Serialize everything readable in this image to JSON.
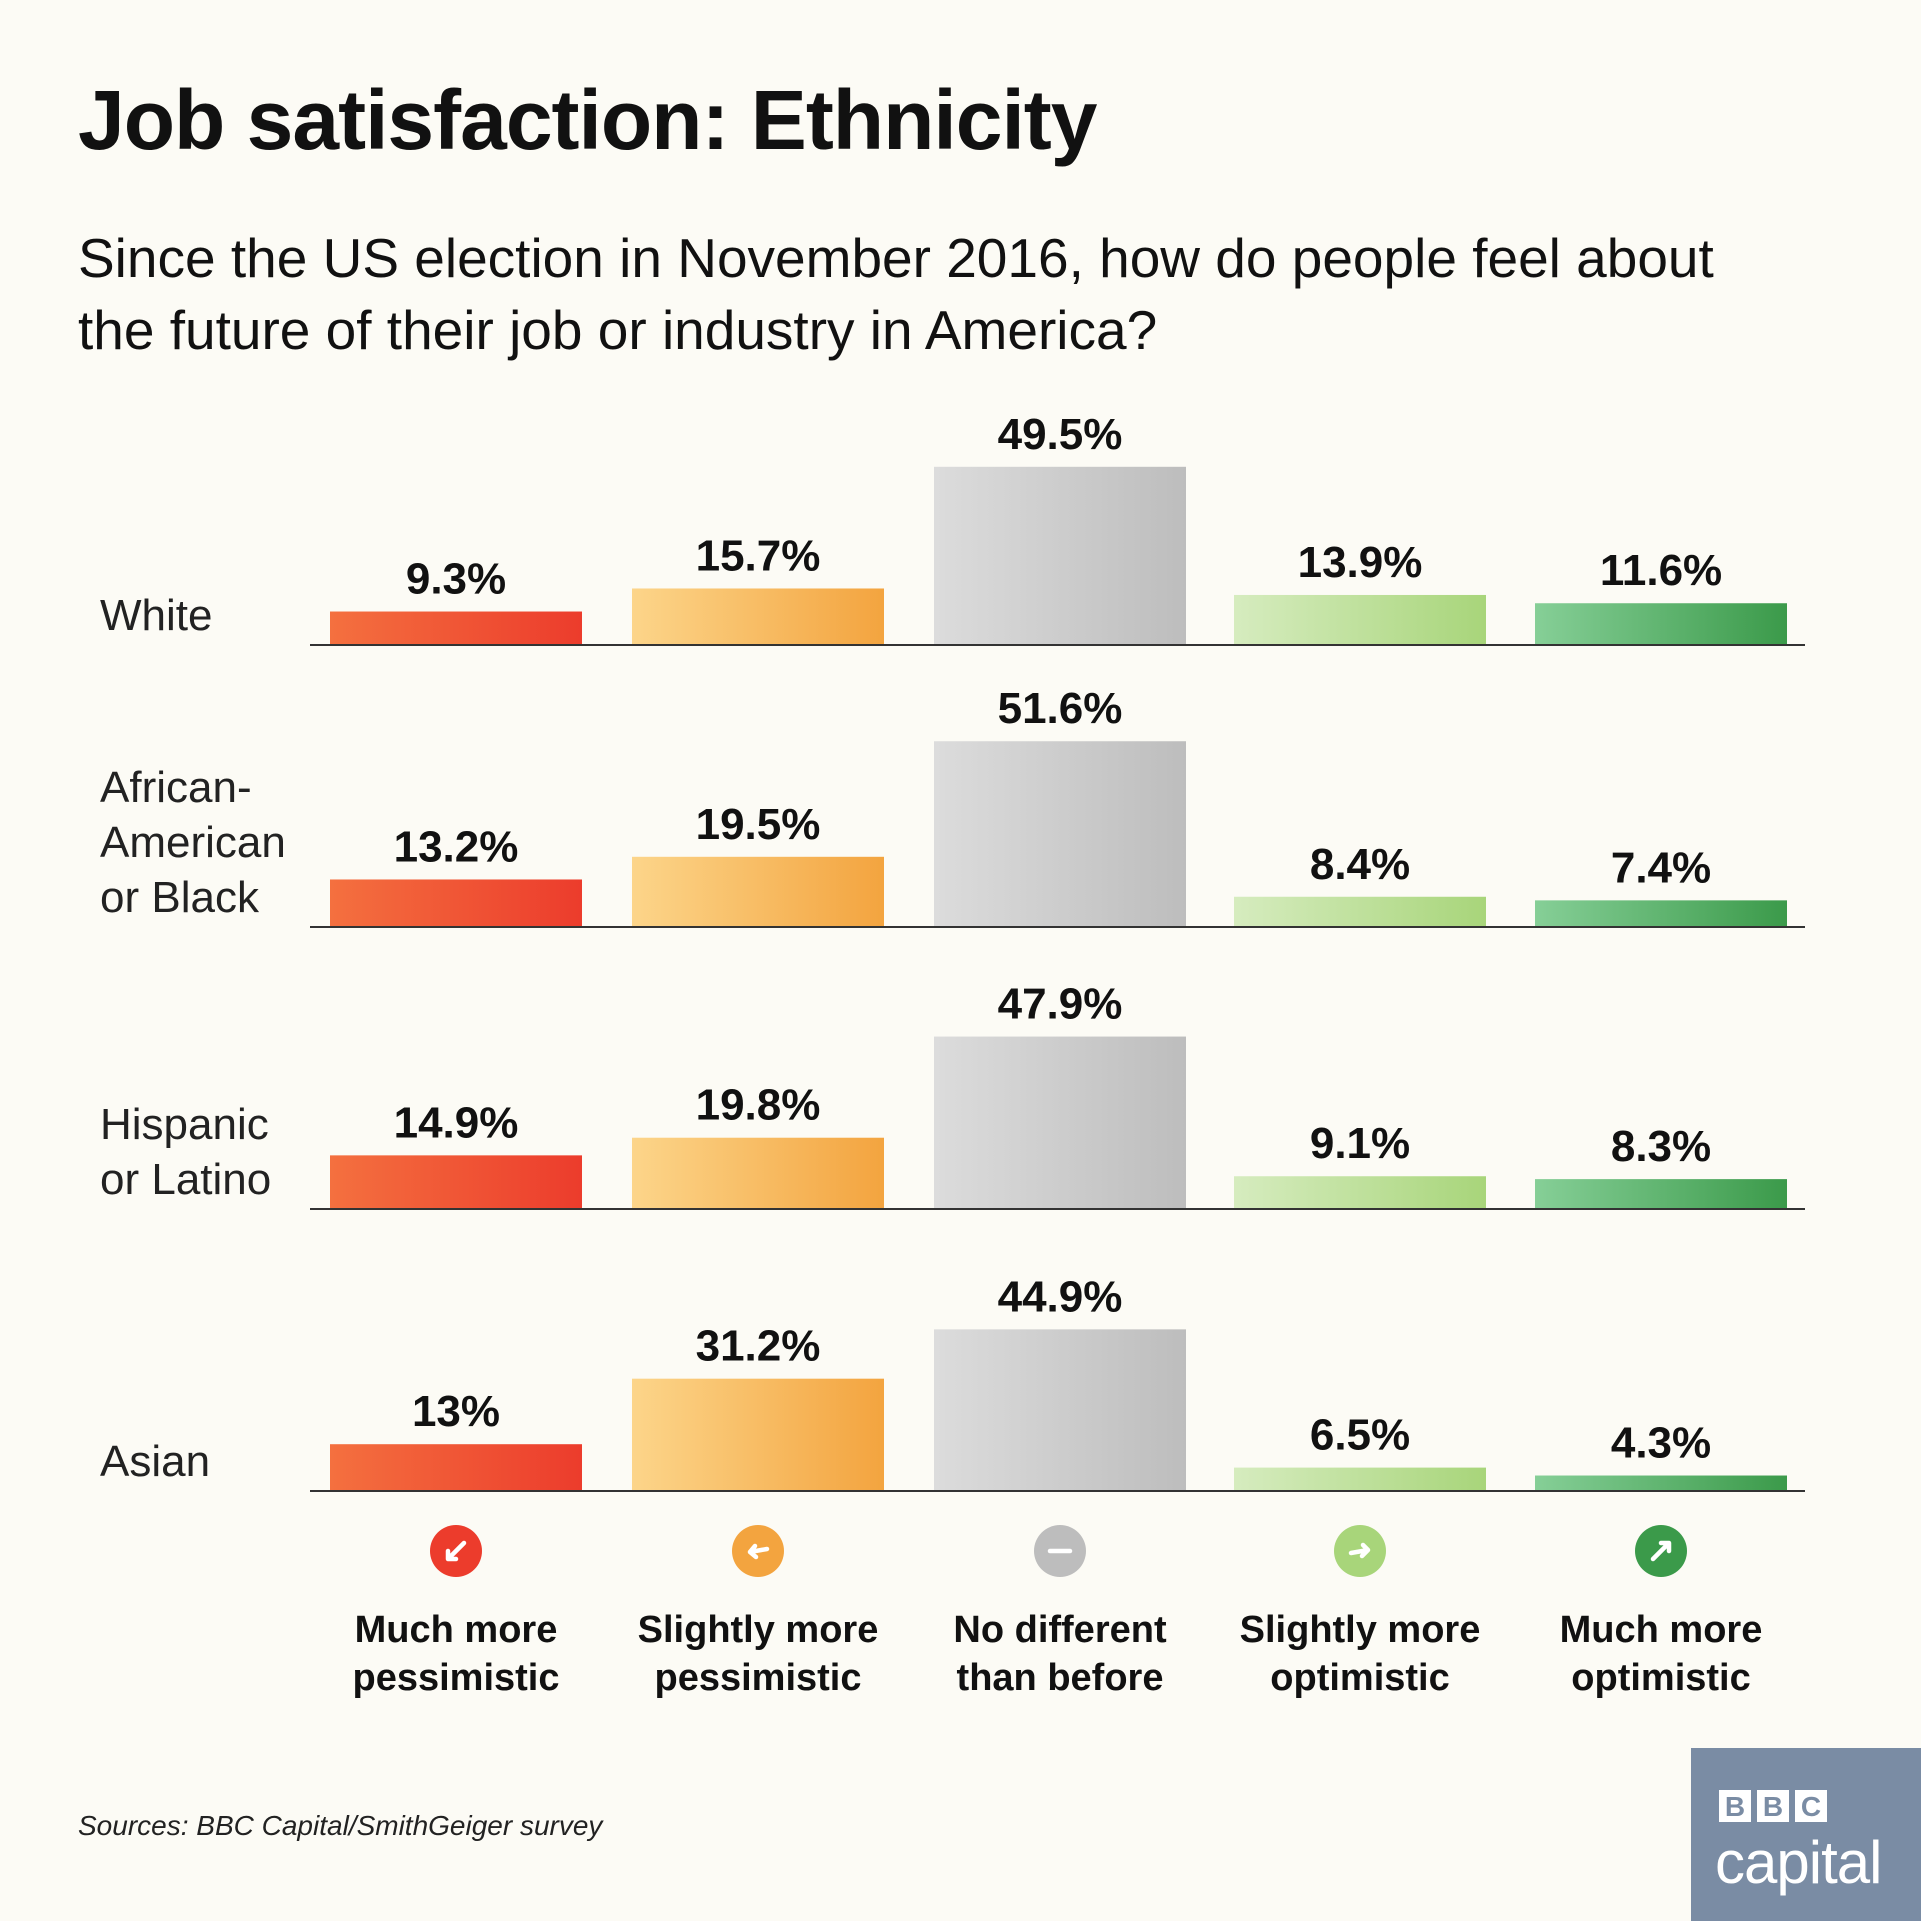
{
  "title": "Job satisfaction: Ethnicity",
  "subtitle": "Since the US election in November 2016, how do people feel about the future of their job or industry in America?",
  "source": "Sources: BBC Capital/SmithGeiger survey",
  "logo": {
    "letters": [
      "B",
      "B",
      "C"
    ],
    "word": "capital"
  },
  "colors": {
    "much_pessimistic": [
      "#f4703f",
      "#ec3c2c"
    ],
    "slightly_pessimistic": [
      "#fcd58a",
      "#f3a43f"
    ],
    "no_different": [
      "#dcdcdc",
      "#bdbdbd"
    ],
    "slightly_optimistic": [
      "#d6ecbf",
      "#a8d57a"
    ],
    "much_optimistic": [
      "#86cf97",
      "#3b9a4a"
    ]
  },
  "chart_data": {
    "type": "bar",
    "categories": [
      "Much more pessimistic",
      "Slightly more pessimistic",
      "No different than before",
      "Slightly more optimistic",
      "Much more optimistic"
    ],
    "category_icons": [
      "arrow-down-left-icon",
      "arrow-left-icon",
      "minus-icon",
      "arrow-right-icon",
      "arrow-up-right-icon"
    ],
    "series": [
      {
        "name": "White",
        "values": [
          9.3,
          15.7,
          49.5,
          13.9,
          11.6
        ],
        "labels": [
          "9.3%",
          "15.7%",
          "49.5%",
          "13.9%",
          "11.6%"
        ]
      },
      {
        "name": "African-American or Black",
        "values": [
          13.2,
          19.5,
          51.6,
          8.4,
          7.4
        ],
        "labels": [
          "13.2%",
          "19.5%",
          "51.6%",
          "8.4%",
          "7.4%"
        ]
      },
      {
        "name": "Hispanic or Latino",
        "values": [
          14.9,
          19.8,
          47.9,
          9.1,
          8.3
        ],
        "labels": [
          "14.9%",
          "19.8%",
          "47.9%",
          "9.1%",
          "8.3%"
        ]
      },
      {
        "name": "Asian",
        "values": [
          13,
          31.2,
          44.9,
          6.5,
          4.3
        ],
        "labels": [
          "13%",
          "31.2%",
          "44.9%",
          "6.5%",
          "4.3%"
        ]
      }
    ],
    "ylim": [
      0,
      55
    ],
    "unit": "%"
  }
}
